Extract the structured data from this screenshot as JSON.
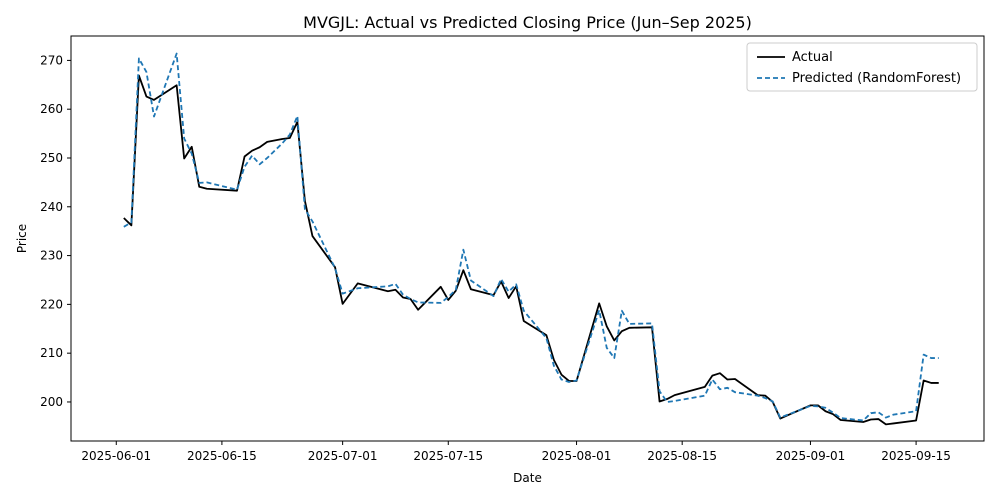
{
  "chart_data": {
    "type": "line",
    "title": "MVGJL: Actual vs Predicted Closing Price (Jun–Sep 2025)",
    "xlabel": "Date",
    "ylabel": "Price",
    "xlim": [
      "2025-05-26",
      "2025-09-24"
    ],
    "ylim": [
      192,
      275
    ],
    "x_ticks": [
      "2025-06-01",
      "2025-06-15",
      "2025-07-01",
      "2025-07-15",
      "2025-08-01",
      "2025-08-15",
      "2025-09-01",
      "2025-09-15"
    ],
    "y_ticks": [
      200,
      210,
      220,
      230,
      240,
      250,
      260,
      270
    ],
    "legend": {
      "placement": "top-right",
      "entries": [
        "Actual",
        "Predicted (RandomForest)"
      ]
    },
    "x": [
      "2025-06-02",
      "2025-06-03",
      "2025-06-04",
      "2025-06-05",
      "2025-06-06",
      "2025-06-09",
      "2025-06-10",
      "2025-06-11",
      "2025-06-12",
      "2025-06-13",
      "2025-06-17",
      "2025-06-18",
      "2025-06-19",
      "2025-06-20",
      "2025-06-21",
      "2025-06-23",
      "2025-06-24",
      "2025-06-25",
      "2025-06-26",
      "2025-06-27",
      "2025-06-30",
      "2025-07-01",
      "2025-07-03",
      "2025-07-07",
      "2025-07-08",
      "2025-07-09",
      "2025-07-10",
      "2025-07-11",
      "2025-07-14",
      "2025-07-15",
      "2025-07-16",
      "2025-07-17",
      "2025-07-18",
      "2025-07-21",
      "2025-07-22",
      "2025-07-23",
      "2025-07-24",
      "2025-07-25",
      "2025-07-28",
      "2025-07-29",
      "2025-07-30",
      "2025-07-31",
      "2025-08-01",
      "2025-08-04",
      "2025-08-05",
      "2025-08-06",
      "2025-08-07",
      "2025-08-08",
      "2025-08-11",
      "2025-08-12",
      "2025-08-13",
      "2025-08-14",
      "2025-08-18",
      "2025-08-19",
      "2025-08-20",
      "2025-08-21",
      "2025-08-22",
      "2025-08-25",
      "2025-08-26",
      "2025-08-27",
      "2025-08-28",
      "2025-08-29",
      "2025-09-01",
      "2025-09-02",
      "2025-09-03",
      "2025-09-04",
      "2025-09-05",
      "2025-09-08",
      "2025-09-09",
      "2025-09-10",
      "2025-09-11",
      "2025-09-12",
      "2025-09-15",
      "2025-09-16",
      "2025-09-17",
      "2025-09-18"
    ],
    "series": [
      {
        "name": "Actual",
        "color": "#000000",
        "style": "solid",
        "values": [
          237.7,
          236.2,
          266.9,
          262.6,
          261.9,
          264.9,
          249.9,
          252.3,
          244.1,
          243.7,
          243.3,
          250.3,
          251.5,
          252.2,
          253.3,
          253.9,
          254.1,
          257.4,
          241.2,
          234.0,
          227.6,
          220.1,
          224.3,
          222.7,
          223.0,
          221.4,
          221.1,
          218.9,
          223.6,
          220.9,
          222.8,
          227.0,
          223.1,
          221.9,
          224.7,
          221.3,
          223.7,
          216.6,
          213.7,
          208.6,
          205.6,
          204.3,
          204.3,
          220.2,
          215.5,
          212.6,
          214.5,
          215.2,
          215.3,
          200.1,
          200.6,
          201.4,
          203.1,
          205.4,
          205.9,
          204.6,
          204.7,
          201.4,
          201.3,
          200.0,
          196.6,
          197.3,
          199.3,
          199.3,
          198.1,
          197.5,
          196.3,
          195.9,
          196.4,
          196.5,
          195.4,
          195.6,
          196.2,
          204.4,
          203.9,
          203.9
        ]
      },
      {
        "name": "Predicted (RandomForest)",
        "color": "#1f77b4",
        "style": "dashed",
        "values": [
          235.9,
          236.8,
          270.4,
          267.6,
          258.5,
          271.4,
          254.0,
          250.9,
          244.9,
          245.0,
          243.5,
          248.2,
          250.5,
          248.7,
          250.0,
          253.0,
          254.8,
          258.6,
          239.5,
          237.0,
          227.4,
          222.2,
          223.3,
          223.7,
          224.2,
          222.0,
          221.1,
          220.4,
          220.3,
          221.5,
          223.0,
          231.2,
          224.9,
          221.7,
          225.2,
          222.6,
          224.1,
          218.7,
          213.1,
          207.4,
          204.6,
          204.1,
          204.4,
          218.8,
          211.1,
          209.0,
          218.7,
          216.0,
          216.1,
          202.2,
          200.0,
          200.2,
          201.3,
          204.6,
          202.6,
          202.9,
          202.0,
          201.3,
          200.8,
          200.1,
          196.8,
          197.4,
          199.2,
          199.1,
          198.8,
          197.8,
          196.7,
          196.2,
          197.7,
          197.9,
          196.8,
          197.4,
          198.1,
          209.7,
          209.0,
          209.0
        ]
      }
    ]
  }
}
